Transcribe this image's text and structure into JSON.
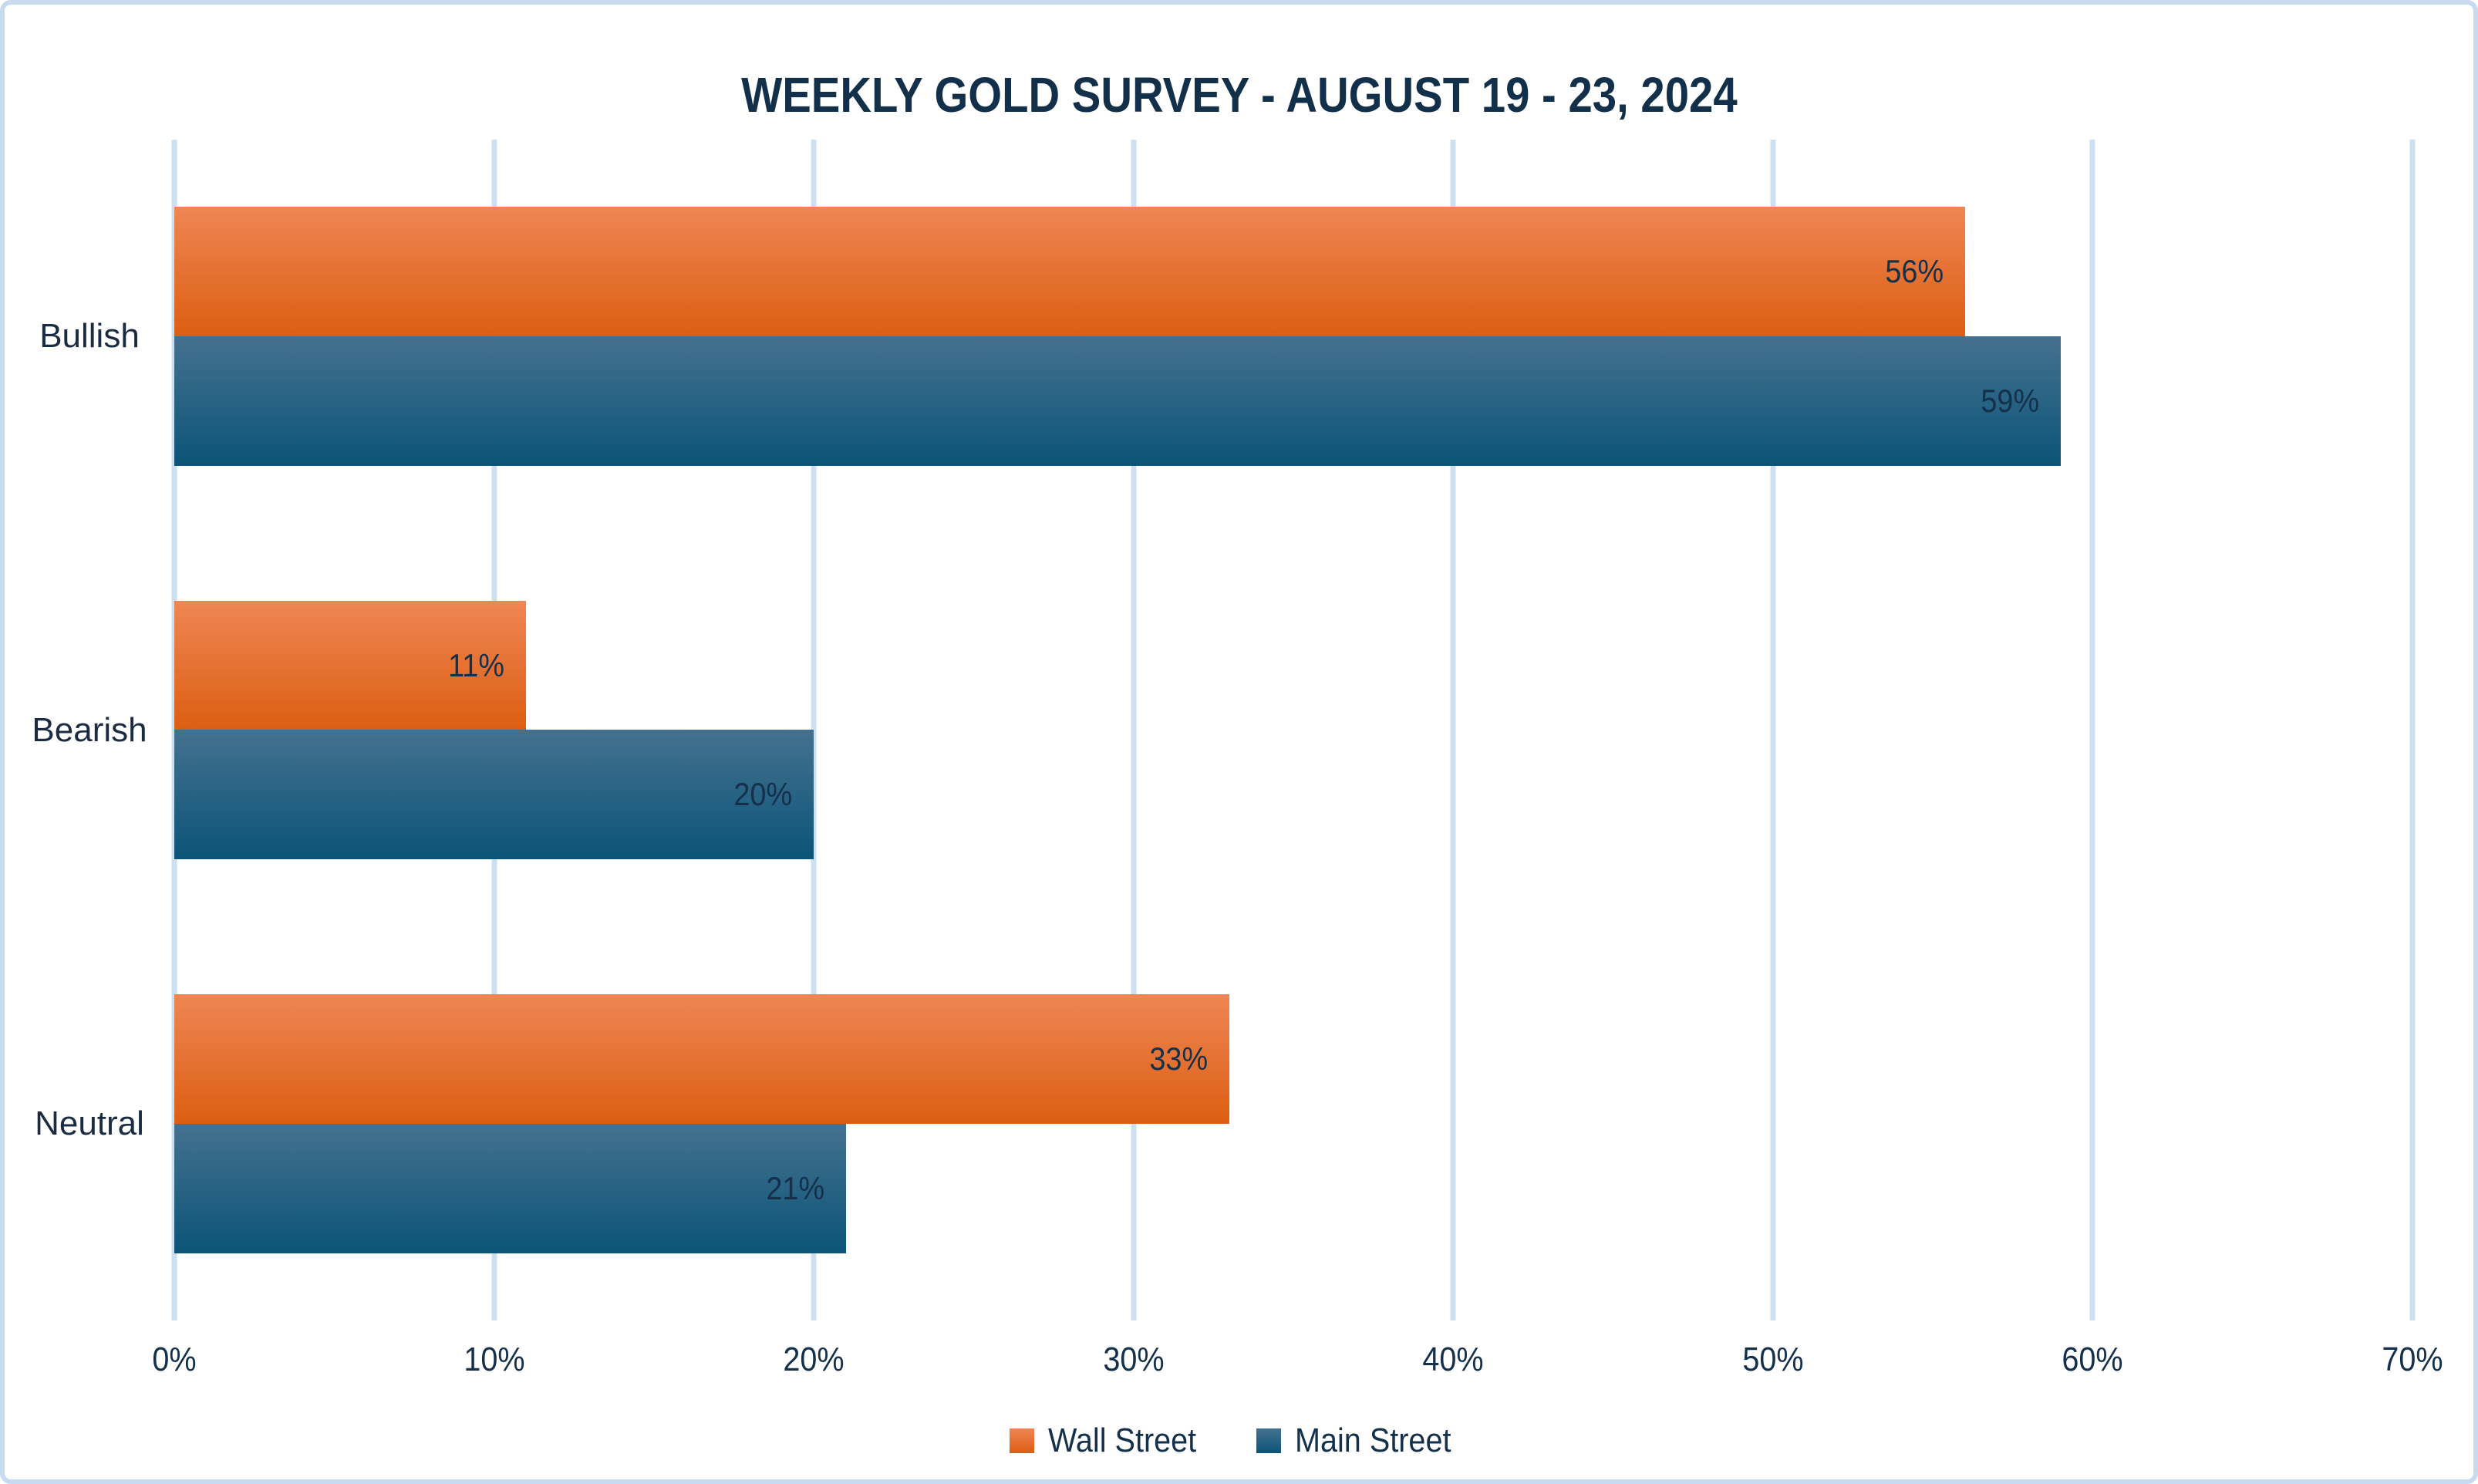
{
  "chart_data": {
    "type": "bar",
    "orientation": "horizontal",
    "title": "WEEKLY GOLD SURVEY - AUGUST 19 - 23, 2024",
    "categories": [
      "Bullish",
      "Bearish",
      "Neutral"
    ],
    "series": [
      {
        "name": "Wall Street",
        "values": [
          56,
          11,
          33
        ],
        "color_top": "#ee8654",
        "color_bottom": "#dc5e12"
      },
      {
        "name": "Main Street",
        "values": [
          59,
          20,
          21
        ],
        "color_top": "#45718f",
        "color_bottom": "#0b5478"
      }
    ],
    "value_suffix": "%",
    "xlim": [
      0,
      70
    ],
    "x_tick_step": 10,
    "x_tick_labels": [
      "0%",
      "10%",
      "20%",
      "30%",
      "40%",
      "50%",
      "60%",
      "70%"
    ],
    "grid": true,
    "legend_position": "bottom",
    "colors": {
      "text": "#14304a",
      "gridline": "#cde0f2",
      "frame_border": "#c7daf0",
      "background": "#ffffff"
    }
  }
}
